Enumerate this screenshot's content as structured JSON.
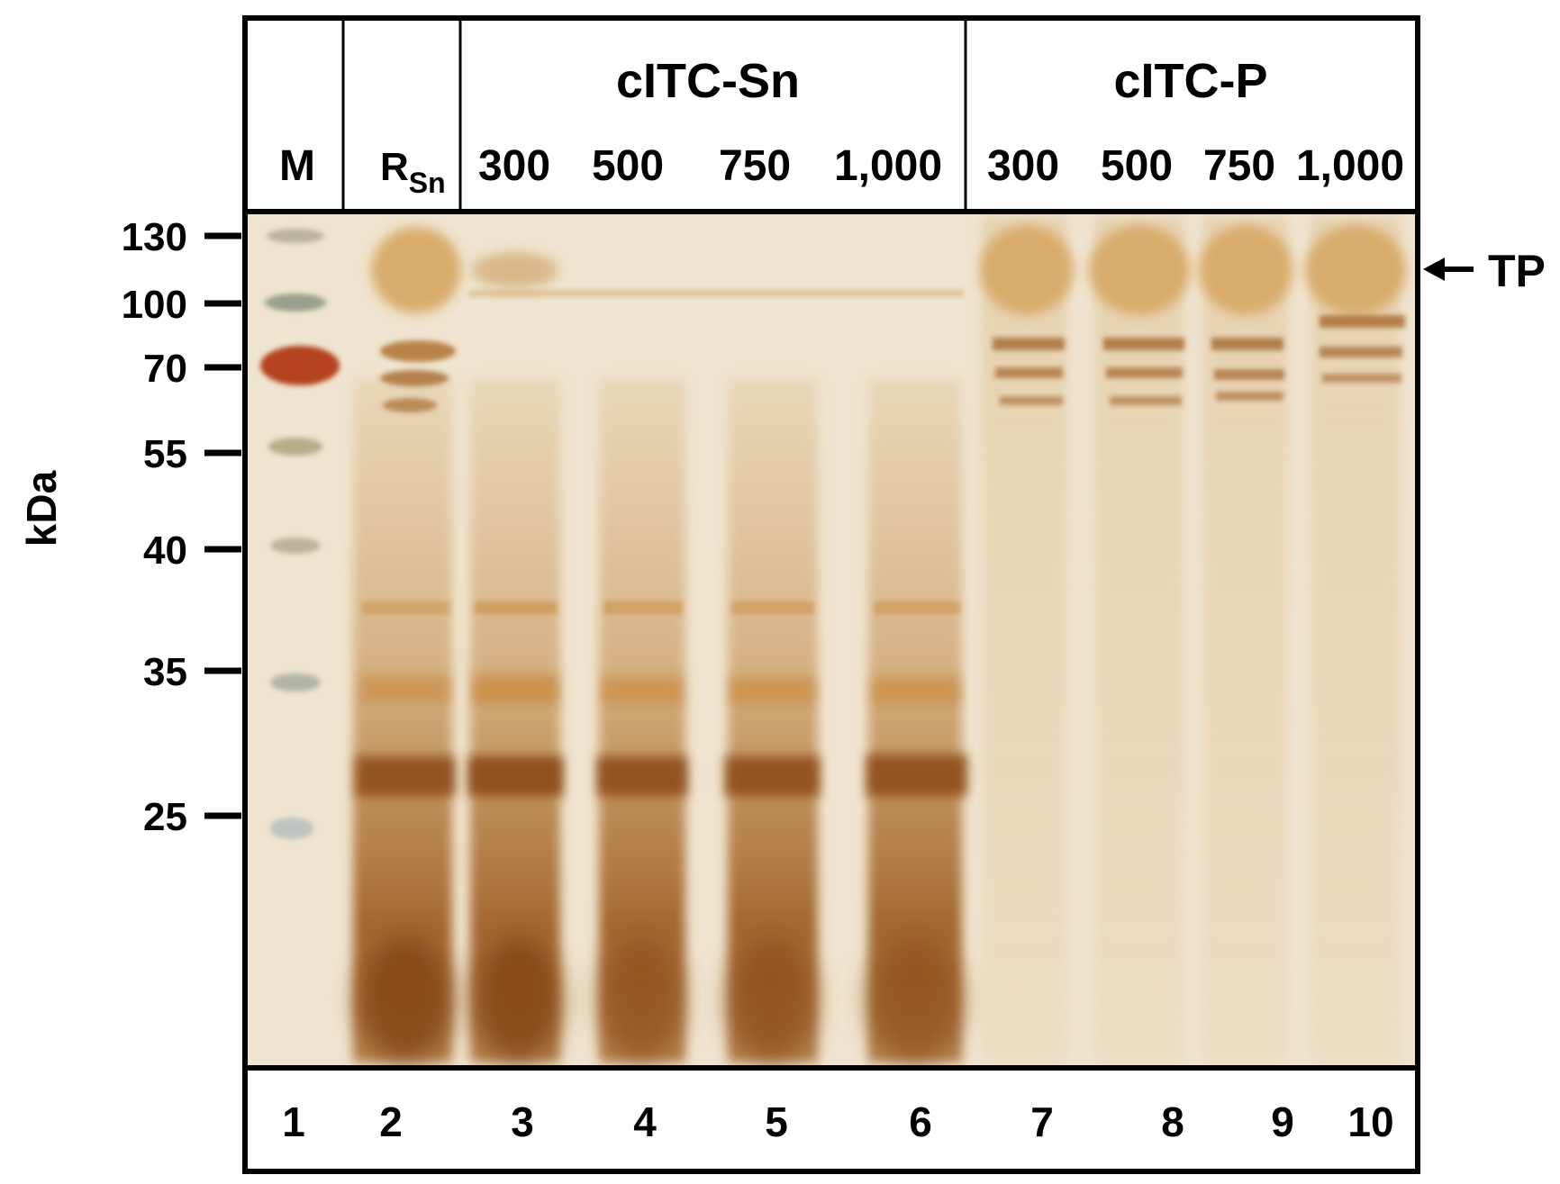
{
  "header": {
    "group_labels": [
      "cITC-Sn",
      "cITC-P"
    ],
    "lane_headers": [
      "M",
      "R",
      "300",
      "500",
      "750",
      "1,000",
      "300",
      "500",
      "750",
      "1,000"
    ],
    "rsn_subscript": "Sn"
  },
  "footer": {
    "lane_numbers": [
      "1",
      "2",
      "3",
      "4",
      "5",
      "6",
      "7",
      "8",
      "9",
      "10"
    ]
  },
  "axis": {
    "unit_label": "kDa",
    "marker_sizes": [
      "130",
      "100",
      "70",
      "55",
      "40",
      "35",
      "25"
    ]
  },
  "annotation": {
    "tp_label": "TP"
  },
  "colors": {
    "gel_background": "#efe4cf",
    "band_brown": "#8a4a16",
    "band_amber": "#c8883a",
    "marker_red": "#b23a18"
  }
}
